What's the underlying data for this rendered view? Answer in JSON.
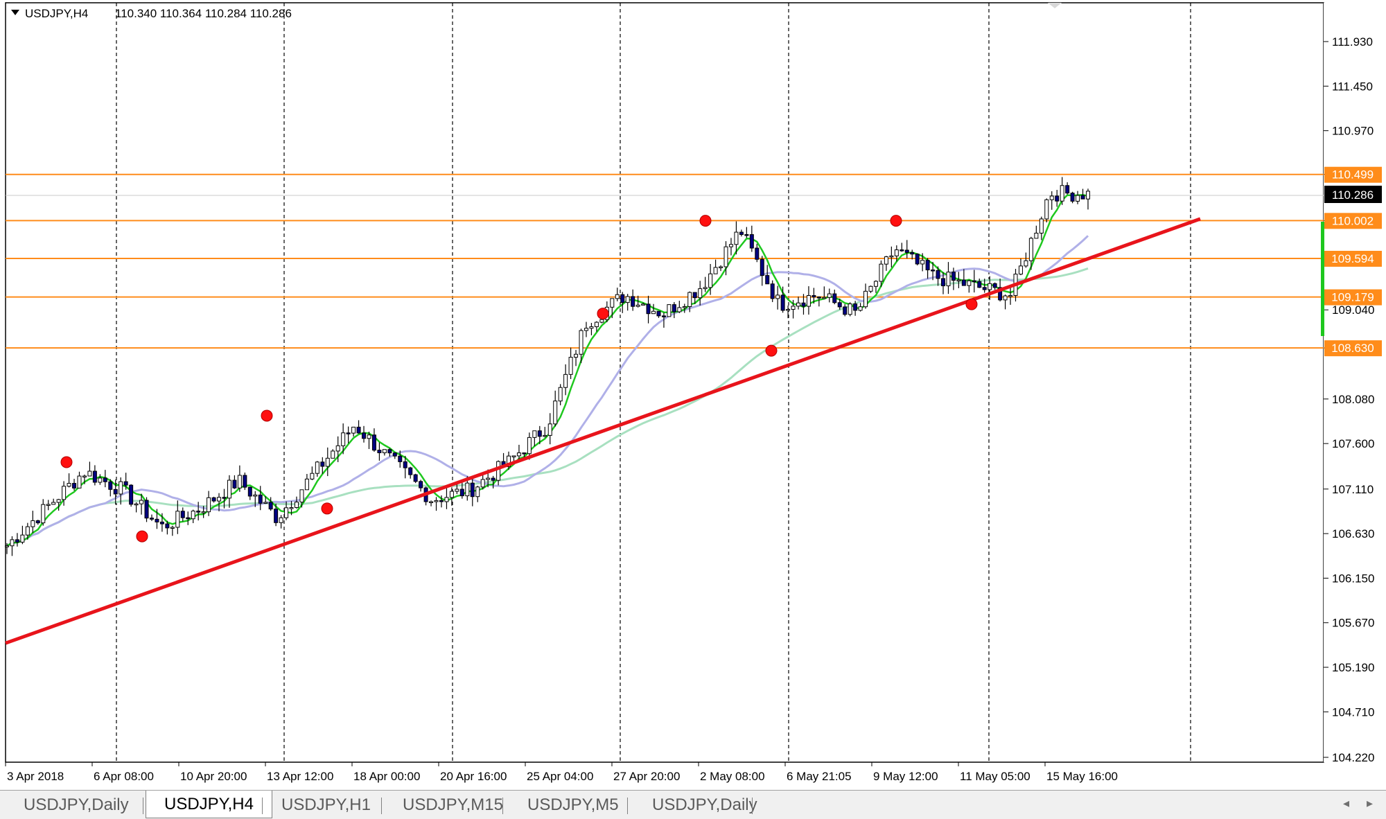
{
  "chart": {
    "symbol_header": "USDJPY,H4",
    "ohlc": "110.340 110.364 110.284 110.286",
    "current_price": "110.286",
    "price_axis": [
      "111.930",
      "111.450",
      "110.970",
      "110.499",
      "110.002",
      "109.594",
      "109.179",
      "109.040",
      "108.630",
      "108.080",
      "107.600",
      "107.110",
      "106.630",
      "106.150",
      "105.670",
      "105.190",
      "104.710",
      "104.220"
    ],
    "time_axis": [
      "3 Apr 2018",
      "6 Apr 08:00",
      "10 Apr 20:00",
      "13 Apr 12:00",
      "18 Apr 00:00",
      "20 Apr 16:00",
      "25 Apr 04:00",
      "27 Apr 20:00",
      "2 May 08:00",
      "6 May 21:05",
      "9 May 12:00",
      "11 May 05:00",
      "15 May 16:00"
    ],
    "horizontal_levels": [
      "110.499",
      "110.002",
      "109.594",
      "109.179",
      "108.630"
    ],
    "colors": {
      "level": "#ff8c1a",
      "trendline": "#e8141b",
      "ma_fast": "#1ec81e",
      "ma_mid": "#b0b0e8",
      "ma_slow": "#a8e0c0",
      "candle": "#000080",
      "swing_point": "#ff1010"
    }
  },
  "chart_data": {
    "type": "candlestick",
    "x": [
      "3 Apr 2018",
      "6 Apr 08:00",
      "10 Apr 20:00",
      "13 Apr 12:00",
      "18 Apr 00:00",
      "20 Apr 16:00",
      "25 Apr 04:00",
      "27 Apr 20:00",
      "2 May 08:00",
      "6 May 21:05",
      "9 May 12:00",
      "11 May 05:00",
      "15 May 16:00"
    ],
    "close_path": [
      106.5,
      106.9,
      107.3,
      107.1,
      106.7,
      106.9,
      107.2,
      106.8,
      107.3,
      107.8,
      107.4,
      107.0,
      107.1,
      107.4,
      107.8,
      108.9,
      109.2,
      109.0,
      109.3,
      109.9,
      109.1,
      109.2,
      109.0,
      109.7,
      109.4,
      109.3,
      109.2,
      110.3,
      110.29
    ],
    "swing_points": [
      107.4,
      106.6,
      107.9,
      106.9,
      109.0,
      110.0,
      108.6,
      110.0,
      109.1
    ],
    "trendline": {
      "start": 105.45,
      "end": 110.02
    },
    "ylim": [
      104.22,
      112.2
    ]
  },
  "tabs": [
    {
      "label": "USDJPY,Daily",
      "active": false
    },
    {
      "label": "USDJPY,H4",
      "active": true
    },
    {
      "label": "USDJPY,H1",
      "active": false
    },
    {
      "label": "USDJPY,M15",
      "active": false
    },
    {
      "label": "USDJPY,M5",
      "active": false
    },
    {
      "label": "USDJPY,Daily",
      "active": false
    }
  ]
}
